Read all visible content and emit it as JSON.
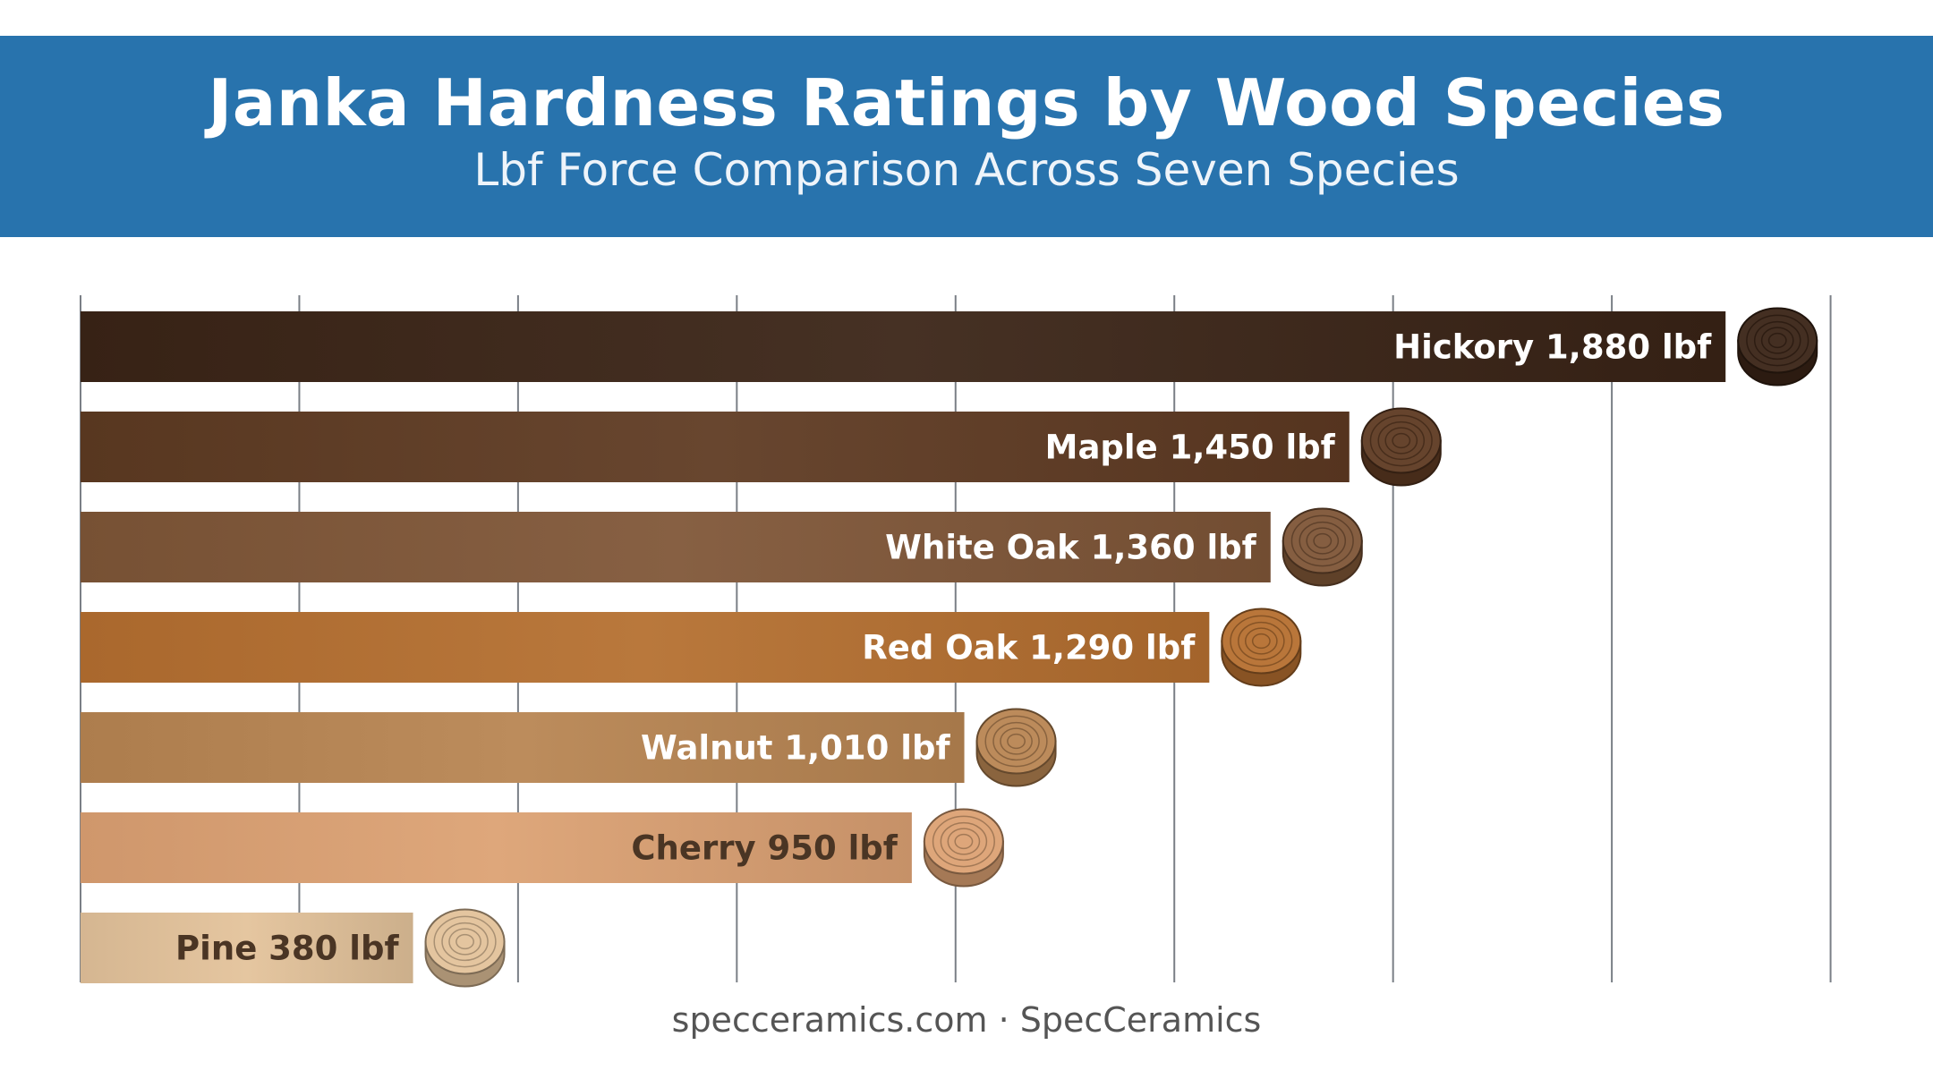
{
  "chart_data": {
    "type": "bar",
    "orientation": "horizontal",
    "title": "Janka Hardness Ratings by Wood Species",
    "subtitle": "Lbf Force Comparison Across Seven Species",
    "categories": [
      "Hickory",
      "Maple",
      "White Oak",
      "Red Oak",
      "Walnut",
      "Cherry",
      "Pine"
    ],
    "values": [
      1880,
      1450,
      1360,
      1290,
      1010,
      950,
      380
    ],
    "value_labels": [
      "1,880 lbf",
      "1,450 lbf",
      "1,360 lbf",
      "1,290 lbf",
      "1,010 lbf",
      "950 lbf",
      "380 lbf"
    ],
    "unit": "lbf",
    "xlim": [
      0,
      2025
    ],
    "gridlines": [
      0,
      250,
      500,
      750,
      1000,
      1250,
      1500,
      1750,
      2000
    ],
    "grid": true,
    "colors": [
      "#3a2416",
      "#5e3a22",
      "#7f5637",
      "#b56f30",
      "#b88552",
      "#dca173",
      "#e3c29a"
    ],
    "label_colors": [
      "#ffffff",
      "#ffffff",
      "#ffffff",
      "#ffffff",
      "#ffffff",
      "#4a3524",
      "#4a3524"
    ],
    "icon": "wood-log-slice-icon"
  },
  "footer": {
    "text": "specceramics.com · SpecCeramics"
  }
}
